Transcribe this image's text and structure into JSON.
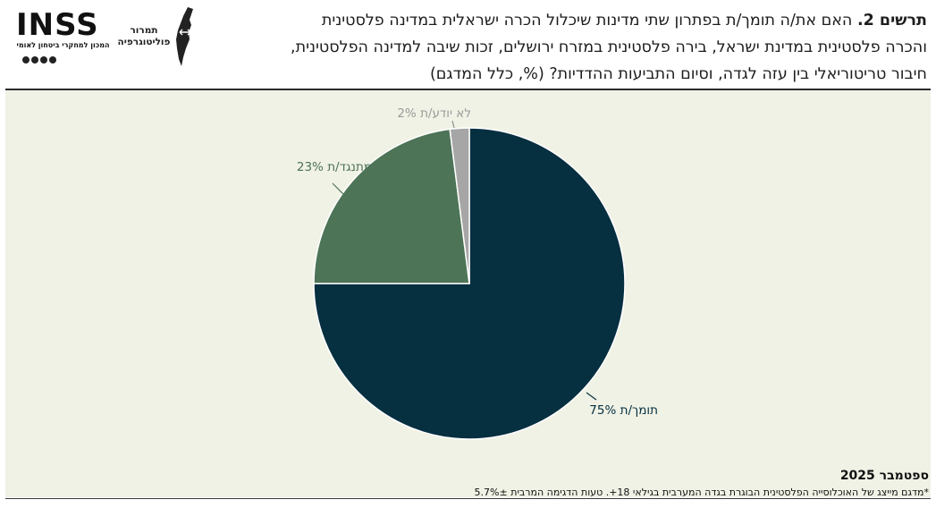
{
  "header": {
    "title_bold": "תרשים 2.",
    "title_lines": [
      "האם את/ה תומך/ת בפתרון שתי מדינות שיכלול הכרה ישראלית במדינה פלסטינית",
      "והכרה פלסטינית במדינת ישראל, בירה פלסטינית במזרח ירושלים, זכות שיבה למדינה הפלסטינית,",
      "חיבור טריטוריאלי בין עזה לגדה, וסיום התביעות ההדדיות? (%, כלל המדגם)"
    ],
    "logo_inss": {
      "word": "INSS",
      "subtitle": "המכון למחקרי ביטחון לאומי"
    },
    "logo_map": {
      "line1": "תמרור",
      "line2": "פוליטוגרפיה"
    }
  },
  "chart_data": {
    "type": "pie",
    "title": "",
    "slices": [
      {
        "label": "תומך/ת",
        "value": 75,
        "color": "#062f40"
      },
      {
        "label": "מתנגד/ת",
        "value": 23,
        "color": "#4d7457"
      },
      {
        "label": "לא יודע/ת",
        "value": 2,
        "color": "#a6a6a6"
      }
    ],
    "data_labels": [
      "תומך/ת 75%",
      "מתנגד/ת 23%",
      "לא יודע/ת 2%"
    ],
    "legend": "none",
    "background": "#f0f2e5"
  },
  "footer": {
    "date": "ספטמבר 2025",
    "note": "*מדגם מייצג של האוכלוסייה הפלסטינית הבוגרת בגדה המערבית בגילאי 18+. טעות הדגימה המרבית 5.7%±"
  }
}
